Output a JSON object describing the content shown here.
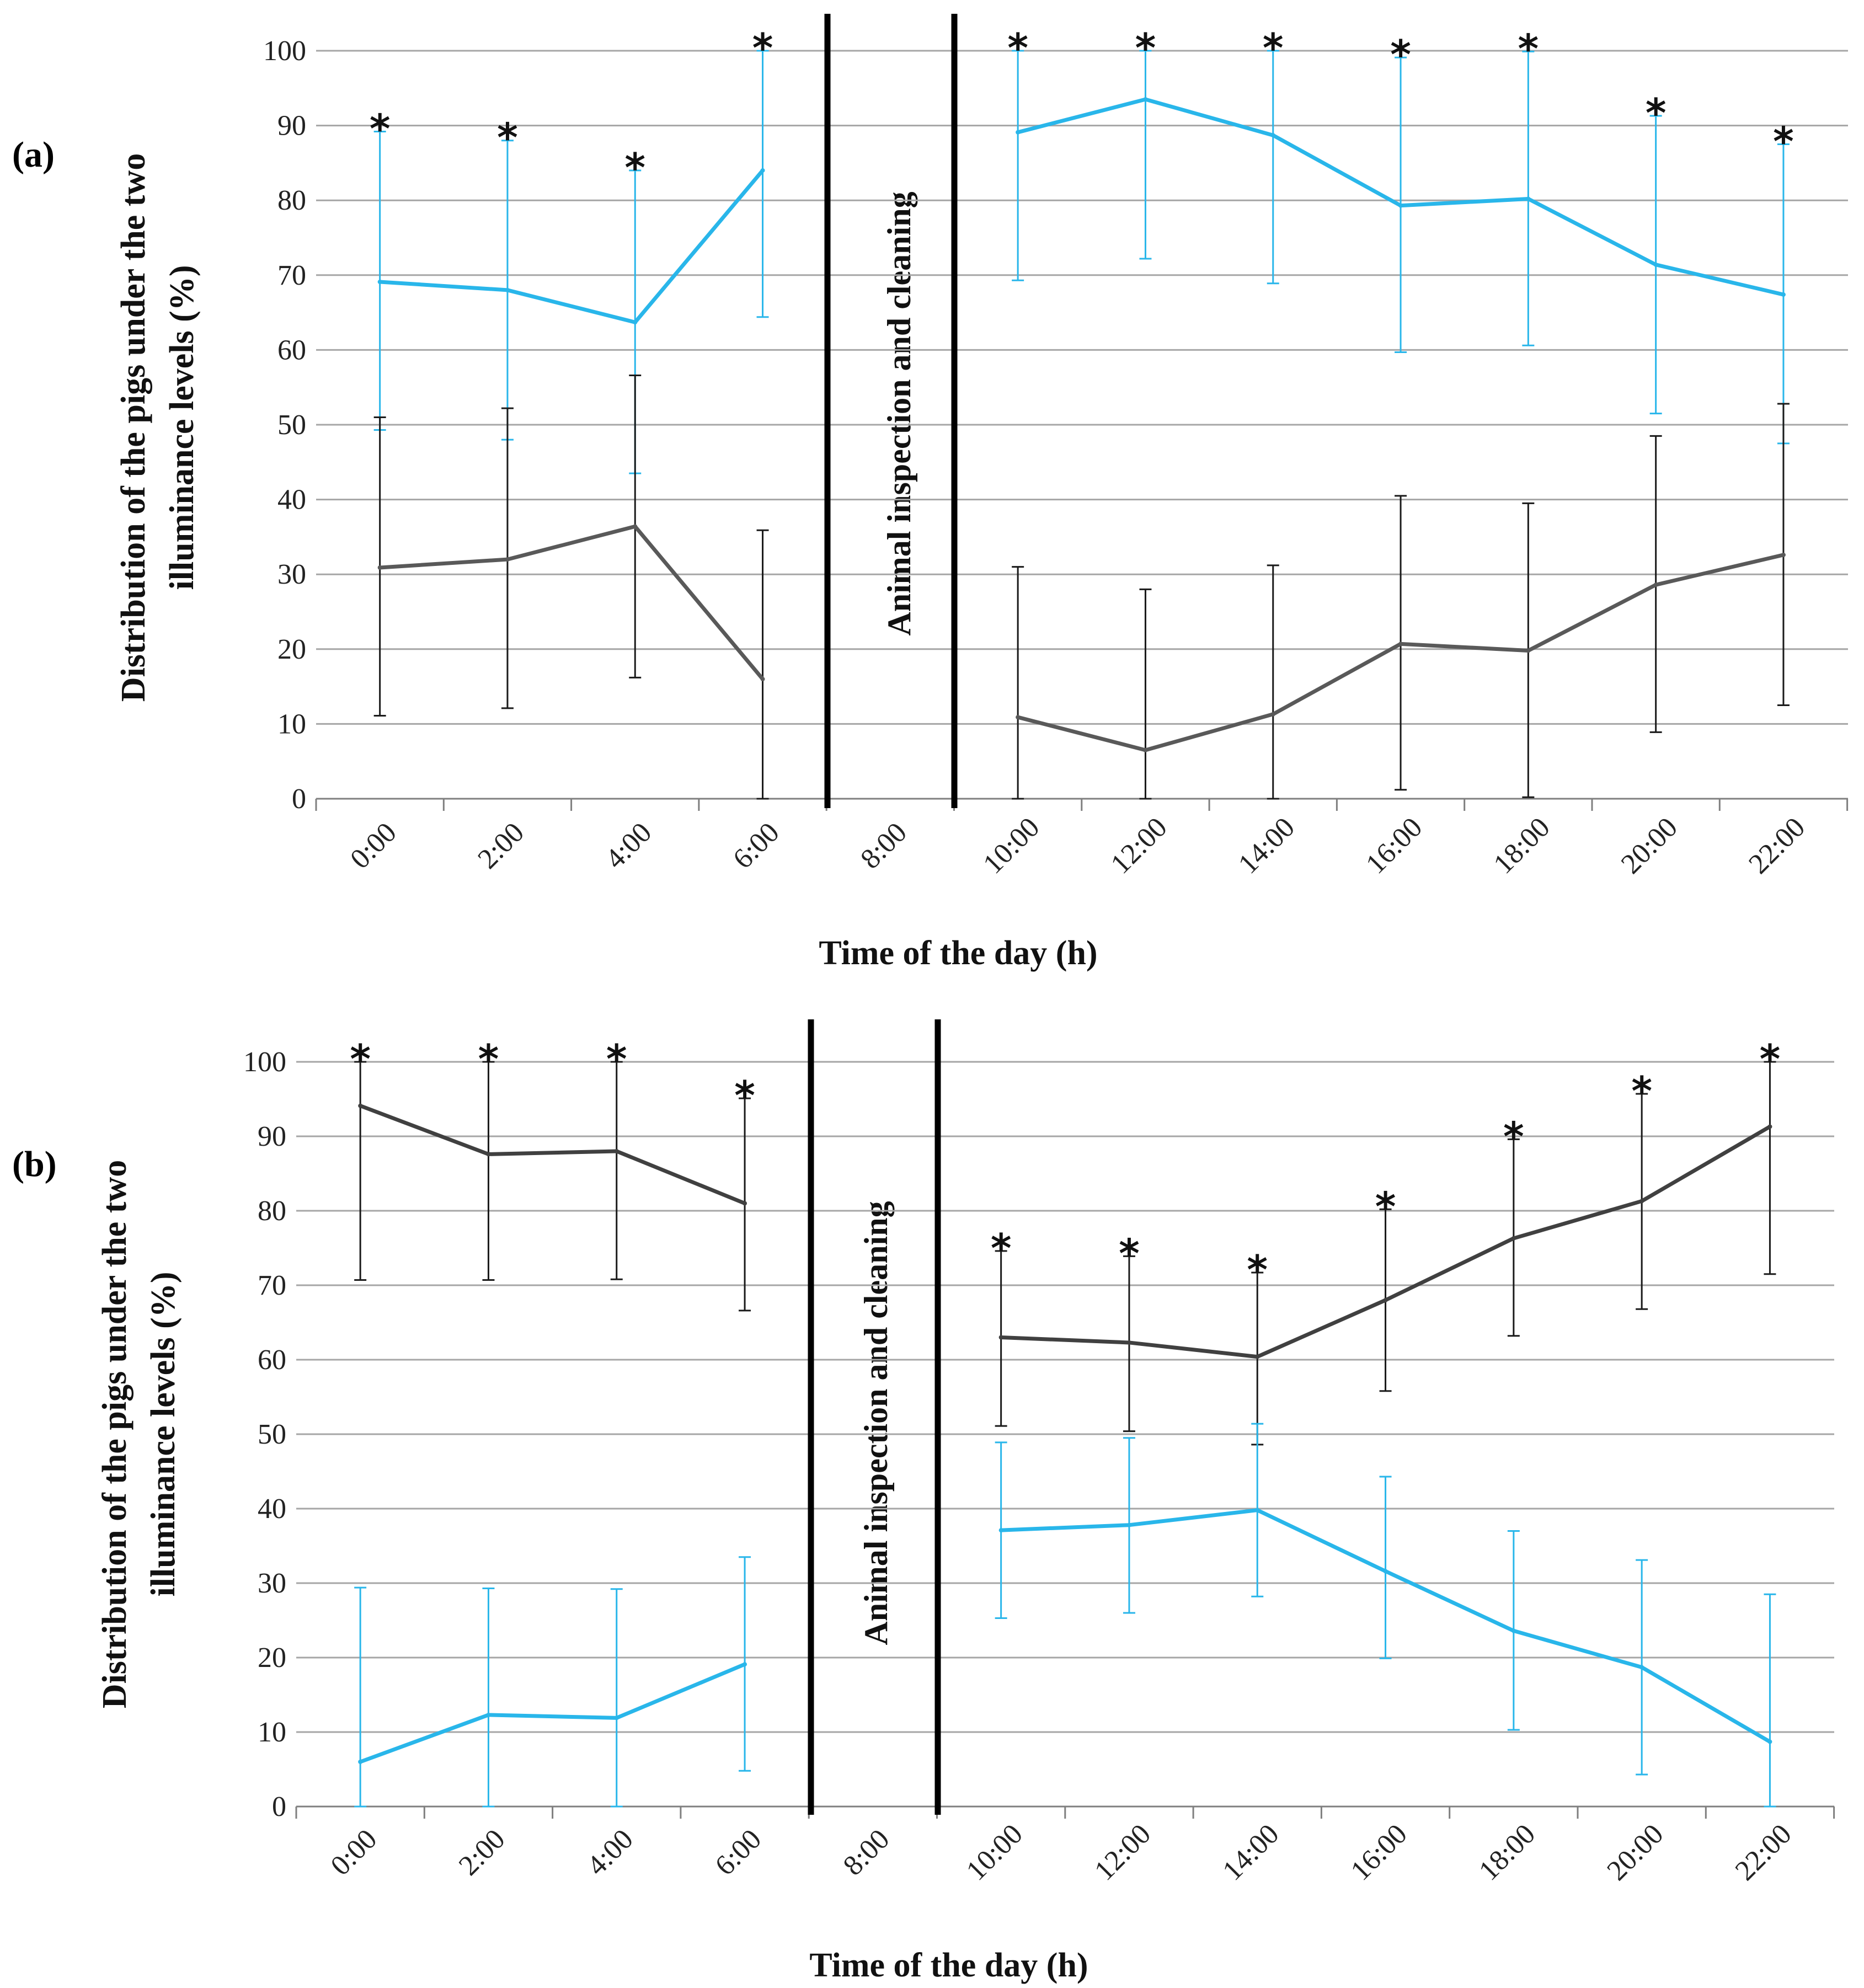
{
  "colors": {
    "blue": "#29b6ea",
    "gray": "#595959",
    "grid": "#a6a6a6",
    "err_gray": "#1a1a1a"
  },
  "chart_data": [
    {
      "type": "line",
      "panel_label": "(a)",
      "ylabel_line1": "Distribution of the pigs under the two",
      "ylabel_line2": "illuminance levels (%)",
      "xlabel": "Time of the day (h)",
      "gap_label": "Animal inspection and cleaning",
      "ylim": [
        0,
        100
      ],
      "yticks": [
        "0",
        "10",
        "20",
        "30",
        "40",
        "50",
        "60",
        "70",
        "80",
        "90",
        "100"
      ],
      "categories": [
        "0:00",
        "2:00",
        "4:00",
        "6:00",
        "8:00",
        "10:00",
        "12:00",
        "14:00",
        "16:00",
        "18:00",
        "20:00",
        "22:00"
      ],
      "gap_index": 4,
      "series": [
        {
          "name": "blue",
          "color": "#29b6ea",
          "values": [
            69.1,
            68.0,
            63.7,
            84.0,
            null,
            89.1,
            93.5,
            88.7,
            79.3,
            80.2,
            71.4,
            67.4
          ],
          "err_low": [
            49.3,
            48.0,
            43.5,
            64.4,
            null,
            69.3,
            72.2,
            68.9,
            59.7,
            60.6,
            51.5,
            47.5
          ],
          "err_high": [
            89.2,
            88.0,
            84.0,
            100.0,
            null,
            100.0,
            100.0,
            100.0,
            99.1,
            99.9,
            91.3,
            87.5
          ]
        },
        {
          "name": "gray",
          "color": "#595959",
          "values": [
            30.9,
            32.0,
            36.4,
            16.0,
            null,
            10.9,
            6.5,
            11.3,
            20.7,
            19.8,
            28.6,
            32.6
          ],
          "err_low": [
            11.1,
            12.1,
            16.2,
            0.0,
            null,
            0.0,
            0.0,
            0.0,
            1.2,
            0.2,
            8.9,
            12.5
          ],
          "err_high": [
            51.0,
            52.2,
            56.6,
            35.9,
            null,
            31.0,
            28.0,
            31.2,
            40.5,
            39.5,
            48.5,
            52.8
          ]
        }
      ],
      "significance": [
        "*",
        "*",
        "*",
        "*",
        "",
        "*",
        "*",
        "*",
        "*",
        "*",
        "*",
        "*"
      ]
    },
    {
      "type": "line",
      "panel_label": "(b)",
      "ylabel_line1": "Distribution of the pigs under the two",
      "ylabel_line2": "illuminance levels (%)",
      "xlabel": "Time of the day (h)",
      "gap_label": "Animal inspection and cleaning",
      "ylim": [
        0,
        100
      ],
      "yticks": [
        "0",
        "10",
        "20",
        "30",
        "40",
        "50",
        "60",
        "70",
        "80",
        "90",
        "100"
      ],
      "categories": [
        "0:00",
        "2:00",
        "4:00",
        "6:00",
        "8:00",
        "10:00",
        "12:00",
        "14:00",
        "16:00",
        "18:00",
        "20:00",
        "22:00"
      ],
      "gap_index": 4,
      "series": [
        {
          "name": "gray",
          "color": "#404040",
          "values": [
            94.1,
            87.6,
            88.0,
            81.0,
            null,
            63.0,
            62.3,
            60.4,
            68.0,
            76.3,
            81.3,
            91.3
          ],
          "err_low": [
            70.7,
            70.7,
            70.8,
            66.6,
            null,
            51.1,
            50.4,
            48.6,
            55.8,
            63.2,
            66.8,
            71.5
          ],
          "err_high": [
            100.0,
            100.0,
            100.0,
            95.1,
            null,
            74.6,
            73.9,
            71.7,
            80.2,
            89.6,
            95.7,
            100.0
          ]
        },
        {
          "name": "blue",
          "color": "#29b6ea",
          "values": [
            6.0,
            12.3,
            11.9,
            19.1,
            null,
            37.1,
            37.8,
            39.8,
            31.6,
            23.6,
            18.7,
            8.7
          ],
          "err_low": [
            0.0,
            0.0,
            0.0,
            4.8,
            null,
            25.3,
            26.0,
            28.2,
            19.9,
            10.3,
            4.3,
            0.0
          ],
          "err_high": [
            29.4,
            29.3,
            29.2,
            33.5,
            null,
            48.9,
            49.5,
            51.4,
            44.3,
            37.0,
            33.1,
            28.5
          ]
        }
      ],
      "significance": [
        "*",
        "*",
        "*",
        "*",
        "",
        "*",
        "*",
        "*",
        "*",
        "*",
        "*",
        "*"
      ]
    }
  ]
}
